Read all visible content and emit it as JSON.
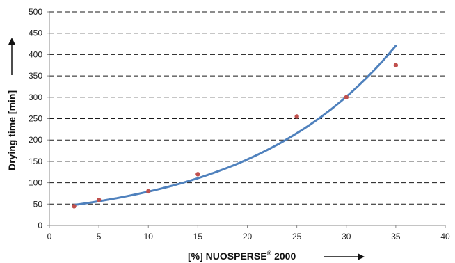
{
  "chart_data": {
    "type": "scatter",
    "title": "",
    "xlabel": "[%] NUOSPERSE",
    "xlabel_sup": "®",
    "xlabel_tail": " 2000",
    "ylabel": "Drying time [min]",
    "xlim": [
      0,
      40
    ],
    "ylim": [
      0,
      500
    ],
    "x_ticks": [
      0,
      5,
      10,
      15,
      20,
      25,
      30,
      35,
      40
    ],
    "y_ticks": [
      0,
      50,
      100,
      150,
      200,
      250,
      300,
      350,
      400,
      450,
      500
    ],
    "grid": "horizontal-dashed",
    "points": {
      "x": [
        2.5,
        5,
        10,
        15,
        25,
        30,
        35
      ],
      "y": [
        45,
        60,
        80,
        120,
        255,
        300,
        375
      ],
      "color": "#c0504d"
    },
    "trendline": {
      "type": "exponential",
      "x_range": [
        2.5,
        35
      ],
      "a": 40.6,
      "b": 0.0668,
      "color": "#4f81bd"
    }
  }
}
